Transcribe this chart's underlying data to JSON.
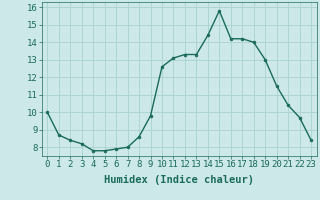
{
  "x": [
    0,
    1,
    2,
    3,
    4,
    5,
    6,
    7,
    8,
    9,
    10,
    11,
    12,
    13,
    14,
    15,
    16,
    17,
    18,
    19,
    20,
    21,
    22,
    23
  ],
  "y": [
    10.0,
    8.7,
    8.4,
    8.2,
    7.8,
    7.8,
    7.9,
    8.0,
    8.6,
    9.8,
    12.6,
    13.1,
    13.3,
    13.3,
    14.4,
    15.8,
    14.2,
    14.2,
    14.0,
    13.0,
    11.5,
    10.4,
    9.7,
    8.4
  ],
  "xlim": [
    -0.5,
    23.5
  ],
  "ylim": [
    7.5,
    16.3
  ],
  "yticks": [
    8,
    9,
    10,
    11,
    12,
    13,
    14,
    15,
    16
  ],
  "xticks": [
    0,
    1,
    2,
    3,
    4,
    5,
    6,
    7,
    8,
    9,
    10,
    11,
    12,
    13,
    14,
    15,
    16,
    17,
    18,
    19,
    20,
    21,
    22,
    23
  ],
  "xlabel": "Humidex (Indice chaleur)",
  "line_color": "#1a6b5a",
  "marker": "o",
  "marker_size": 2,
  "bg_color": "#cce8e8",
  "grid_color": "#aed4d4",
  "text_color": "#1a6b5a",
  "label_fontsize": 7.5,
  "tick_fontsize": 6.5
}
